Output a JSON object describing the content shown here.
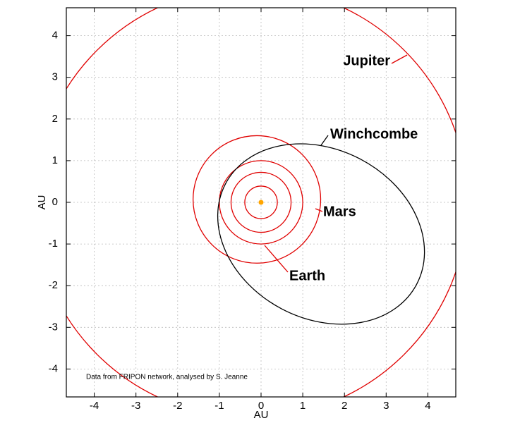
{
  "chart_data": {
    "type": "orbit",
    "x_label": "AU",
    "y_label": "AU",
    "xlim": [
      -4.67,
      4.67
    ],
    "ylim": [
      -4.67,
      4.67
    ],
    "xticks": [
      -4,
      -3,
      -2,
      -1,
      0,
      1,
      2,
      3,
      4
    ],
    "yticks": [
      -4,
      -3,
      -2,
      -1,
      0,
      1,
      2,
      3,
      4
    ],
    "grid": true,
    "note": "Data from FRIPON network, analysed by S. Jeanne",
    "sun": {
      "x": 0,
      "y": 0,
      "color": "#ffa500"
    },
    "orbits": [
      {
        "cx": 0,
        "cy": 0,
        "rx": 0.39,
        "ry": 0.39,
        "angle": 0,
        "color": "#e00000"
      },
      {
        "cx": 0,
        "cy": 0,
        "rx": 0.72,
        "ry": 0.72,
        "angle": 0,
        "color": "#e00000"
      },
      {
        "name": "Earth",
        "cx": 0,
        "cy": 0,
        "rx": 1.0,
        "ry": 1.0,
        "angle": 0,
        "color": "#e00000"
      },
      {
        "name": "Mars",
        "cx": -0.1,
        "cy": 0.07,
        "rx": 1.53,
        "ry": 1.53,
        "angle": 0,
        "color": "#e00000"
      },
      {
        "name": "Jupiter",
        "cx": -0.25,
        "cy": 0,
        "rx": 5.2,
        "ry": 5.17,
        "angle": 0,
        "color": "#e00000"
      },
      {
        "name": "Winchcombe",
        "cx": 1.44,
        "cy": -0.76,
        "rx": 2.59,
        "ry": 2.03,
        "angle": -27.8,
        "color": "#000000"
      }
    ]
  }
}
